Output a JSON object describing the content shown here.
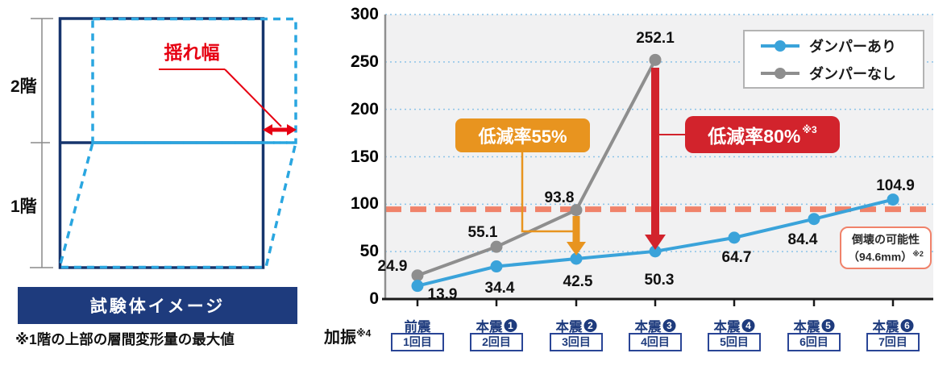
{
  "diagram": {
    "floor2_label": "2階",
    "floor1_label": "1階",
    "sway_label": "揺れ幅",
    "caption": "試験体イメージ",
    "footnote": "※1階の上部の層間変形量の最大値",
    "colors": {
      "solid_frame": "#17356d",
      "deformed_frame": "#2aa6e0",
      "annotation_red": "#e60012",
      "banner_bg": "#1e3b7d"
    }
  },
  "chart_data": {
    "type": "line",
    "categories": [
      {
        "main": "前震",
        "circle": null,
        "run": "1回目"
      },
      {
        "main": "本震",
        "circle": "1",
        "run": "2回目"
      },
      {
        "main": "本震",
        "circle": "2",
        "run": "3回目"
      },
      {
        "main": "本震",
        "circle": "3",
        "run": "4回目"
      },
      {
        "main": "本震",
        "circle": "4",
        "run": "5回目"
      },
      {
        "main": "本震",
        "circle": "5",
        "run": "6回目"
      },
      {
        "main": "本震",
        "circle": "6",
        "run": "7回目"
      }
    ],
    "xlabel": "加振",
    "xlabel_note": "※4",
    "ylim": [
      0,
      300
    ],
    "yticks": [
      0,
      50,
      100,
      150,
      200,
      250,
      300
    ],
    "grid": "horizontal dotted",
    "legend_position": "top-right",
    "series": [
      {
        "name": "ダンパーあり",
        "color": "#3aa3da",
        "values": [
          13.9,
          34.4,
          42.5,
          50.3,
          64.7,
          84.4,
          104.9
        ]
      },
      {
        "name": "ダンパーなし",
        "color": "#8e8e8e",
        "values": [
          24.9,
          55.1,
          93.8,
          252.1
        ]
      }
    ],
    "threshold": {
      "value": 94.6,
      "color": "#f0826a",
      "label_line1": "倒壊の可能性",
      "label_line2": "（94.6mm）",
      "label_note": "※2"
    },
    "annotations": [
      {
        "text": "低減率55%",
        "note": null,
        "color": "#e8941f",
        "from_category": 2
      },
      {
        "text": "低減率80%",
        "note": "※3",
        "color": "#d2232c",
        "from_category": 3
      }
    ]
  }
}
